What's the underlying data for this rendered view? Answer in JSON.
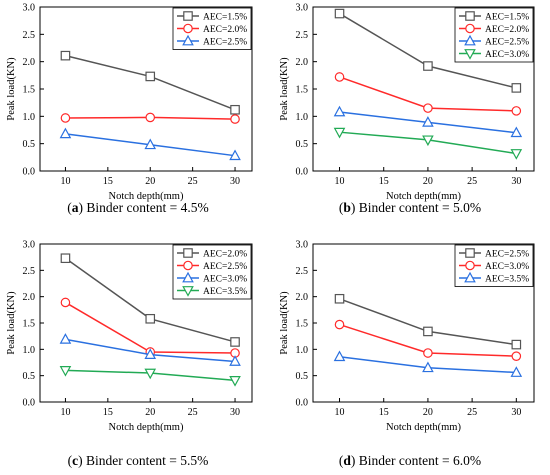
{
  "chart_data": [
    {
      "type": "line",
      "caption_letter": "a",
      "caption_text": "Binder content = 4.5%",
      "xlabel": "Notch depth(mm)",
      "ylabel": "Peak load(KN)",
      "x": [
        10,
        20,
        30
      ],
      "xlim": [
        7,
        32
      ],
      "xticks": [
        10,
        15,
        20,
        25,
        30
      ],
      "ylim": [
        0.0,
        3.0
      ],
      "yticks": [
        "0.0",
        "0.5",
        "1.0",
        "1.5",
        "2.0",
        "2.5",
        "3.0"
      ],
      "grid": false,
      "legend_position": "top-right",
      "series": [
        {
          "name": "AEC=1.5%",
          "values": [
            2.11,
            1.73,
            1.12
          ],
          "color": "#555555",
          "marker": "square"
        },
        {
          "name": "AEC=2.0%",
          "values": [
            0.97,
            0.98,
            0.95
          ],
          "color": "#ff2a2a",
          "marker": "circle"
        },
        {
          "name": "AEC=2.5%",
          "values": [
            0.68,
            0.48,
            0.28
          ],
          "color": "#2a70e0",
          "marker": "triangle-up"
        }
      ]
    },
    {
      "type": "line",
      "caption_letter": "b",
      "caption_text": "Binder content = 5.0%",
      "xlabel": "Notch depth(mm)",
      "ylabel": "Peak load(KN)",
      "x": [
        10,
        20,
        30
      ],
      "xlim": [
        7,
        32
      ],
      "xticks": [
        10,
        15,
        20,
        25,
        30
      ],
      "ylim": [
        0.0,
        3.0
      ],
      "yticks": [
        "0.0",
        "0.5",
        "1.0",
        "1.5",
        "2.0",
        "2.5",
        "3.0"
      ],
      "grid": false,
      "legend_position": "top-right",
      "series": [
        {
          "name": "AEC=1.5%",
          "values": [
            2.88,
            1.92,
            1.52
          ],
          "color": "#555555",
          "marker": "square"
        },
        {
          "name": "AEC=2.0%",
          "values": [
            1.72,
            1.15,
            1.1
          ],
          "color": "#ff2a2a",
          "marker": "circle"
        },
        {
          "name": "AEC=2.5%",
          "values": [
            1.08,
            0.89,
            0.7
          ],
          "color": "#2a70e0",
          "marker": "triangle-up"
        },
        {
          "name": "AEC=3.0%",
          "values": [
            0.71,
            0.57,
            0.32
          ],
          "color": "#22aa55",
          "marker": "triangle-down"
        }
      ]
    },
    {
      "type": "line",
      "caption_letter": "c",
      "caption_text": "Binder content = 5.5%",
      "xlabel": "Notch depth(mm)",
      "ylabel": "Peak load(KN)",
      "x": [
        10,
        20,
        30
      ],
      "xlim": [
        7,
        32
      ],
      "xticks": [
        10,
        15,
        20,
        25,
        30
      ],
      "ylim": [
        0.0,
        3.0
      ],
      "yticks": [
        "0.0",
        "0.5",
        "1.0",
        "1.5",
        "2.0",
        "2.5",
        "3.0"
      ],
      "grid": false,
      "legend_position": "top-right",
      "series": [
        {
          "name": "AEC=2.0%",
          "values": [
            2.73,
            1.58,
            1.14
          ],
          "color": "#555555",
          "marker": "square"
        },
        {
          "name": "AEC=2.5%",
          "values": [
            1.89,
            0.95,
            0.93
          ],
          "color": "#ff2a2a",
          "marker": "circle"
        },
        {
          "name": "AEC=3.0%",
          "values": [
            1.19,
            0.9,
            0.77
          ],
          "color": "#2a70e0",
          "marker": "triangle-up"
        },
        {
          "name": "AEC=3.5%",
          "values": [
            0.6,
            0.55,
            0.41
          ],
          "color": "#22aa55",
          "marker": "triangle-down"
        }
      ]
    },
    {
      "type": "line",
      "caption_letter": "d",
      "caption_text": "Binder content = 6.0%",
      "xlabel": "Notch depth(mm)",
      "ylabel": "Peak load(KN)",
      "x": [
        10,
        20,
        30
      ],
      "xlim": [
        7,
        32
      ],
      "xticks": [
        10,
        15,
        20,
        25,
        30
      ],
      "ylim": [
        0.0,
        3.0
      ],
      "yticks": [
        "0.0",
        "0.5",
        "1.0",
        "1.5",
        "2.0",
        "2.5",
        "3.0"
      ],
      "grid": false,
      "legend_position": "top-right",
      "series": [
        {
          "name": "AEC=2.5%",
          "values": [
            1.96,
            1.34,
            1.09
          ],
          "color": "#555555",
          "marker": "square"
        },
        {
          "name": "AEC=3.0%",
          "values": [
            1.47,
            0.93,
            0.87
          ],
          "color": "#ff2a2a",
          "marker": "circle"
        },
        {
          "name": "AEC=3.5%",
          "values": [
            0.86,
            0.65,
            0.56
          ],
          "color": "#2a70e0",
          "marker": "triangle-up"
        }
      ]
    }
  ]
}
